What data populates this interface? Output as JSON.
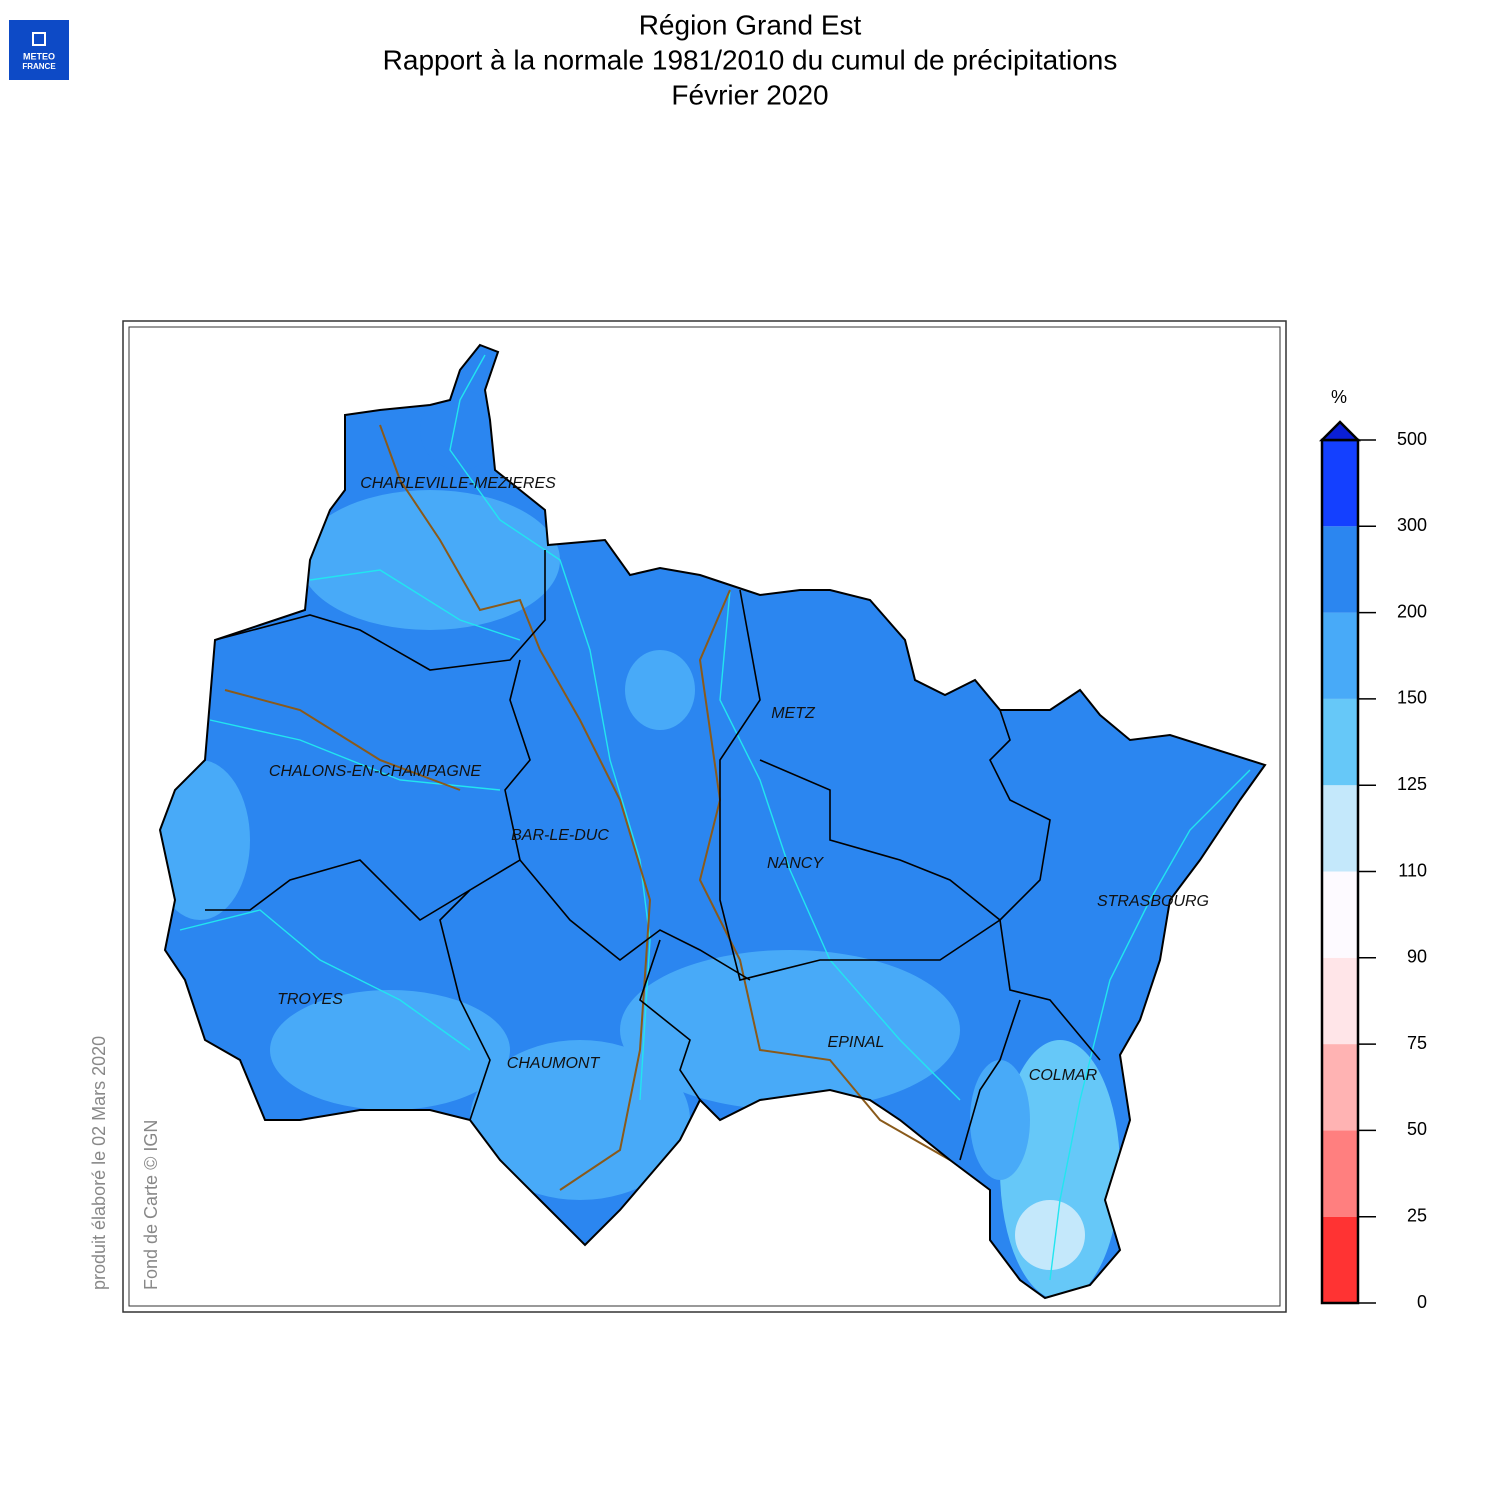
{
  "logo": {
    "lines": [
      "METEO",
      "FRANCE"
    ]
  },
  "title": [
    "Région Grand Est",
    "Rapport à la normale 1981/2010 du cumul de précipitations",
    "Février 2020"
  ],
  "cities": [
    {
      "name": "CHARLEVILLE-MEZIERES"
    },
    {
      "name": "METZ"
    },
    {
      "name": "CHALONS-EN-CHAMPAGNE"
    },
    {
      "name": "BAR-LE-DUC"
    },
    {
      "name": "NANCY"
    },
    {
      "name": "STRASBOURG"
    },
    {
      "name": "TROYES"
    },
    {
      "name": "EPINAL"
    },
    {
      "name": "CHAUMONT"
    },
    {
      "name": "COLMAR"
    }
  ],
  "legend": {
    "unit": "%",
    "ticks": [
      0,
      25,
      50,
      75,
      90,
      110,
      125,
      150,
      200,
      300,
      500
    ],
    "colors": [
      "#ff3333",
      "#ff7f7f",
      "#ffb3b3",
      "#ffe5e8",
      "#fdfaff",
      "#c4e8fb",
      "#66c8f8",
      "#48aaf8",
      "#2b86f0",
      "#1440ff"
    ],
    "overflow_color": "#0a1fd6"
  },
  "credits": [
    "produit élaboré le 02 Mars 2020",
    "Fond de Carte © IGN"
  ]
}
